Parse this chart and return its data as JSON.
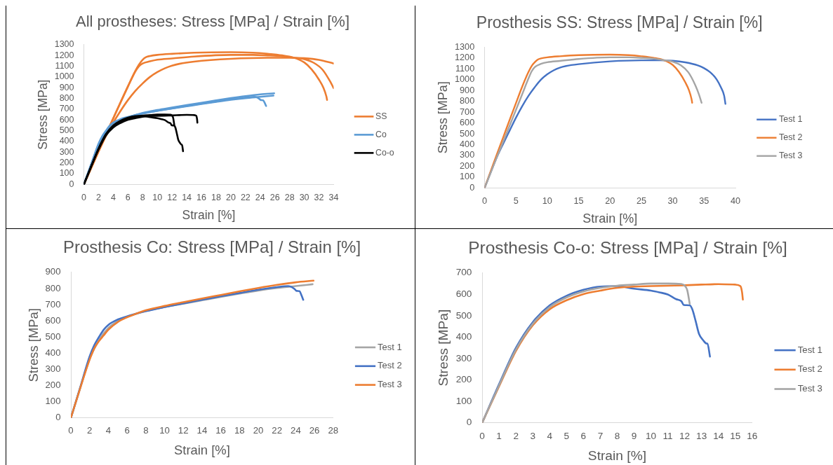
{
  "chart_data": [
    {
      "type": "line",
      "title": "All prostheses: Stress [MPa] / Strain [%]",
      "xlabel": "Strain [%]",
      "ylabel": "Stress [MPa]",
      "xlim": [
        0,
        34
      ],
      "xticks": [
        0,
        2,
        4,
        6,
        8,
        10,
        12,
        14,
        16,
        18,
        20,
        22,
        24,
        26,
        28,
        30,
        32,
        34
      ],
      "ylim": [
        0,
        1300
      ],
      "yticks": [
        0,
        100,
        200,
        300,
        400,
        500,
        600,
        700,
        800,
        900,
        1000,
        1100,
        1200,
        1300
      ],
      "legend": "right",
      "marker": "none",
      "series": [
        {
          "name": "SS",
          "color": "#ed7d31",
          "x": [
            0,
            1,
            2,
            3,
            4,
            5,
            6,
            7,
            8,
            9,
            10,
            11,
            12,
            13,
            15,
            20,
            25,
            28,
            30,
            32,
            34
          ],
          "values": [
            0,
            155,
            305,
            450,
            575,
            685,
            785,
            870,
            940,
            1000,
            1045,
            1080,
            1105,
            1122,
            1142,
            1168,
            1178,
            1178,
            1174,
            1159,
            1125
          ]
        },
        {
          "color": "#ed7d31",
          "x": [
            0,
            1,
            2,
            3,
            4,
            5,
            6,
            7,
            7.5,
            8,
            8.5,
            9,
            10,
            12,
            15,
            20,
            23,
            25,
            27,
            28.5,
            30,
            31,
            32,
            32.6,
            33,
            33.1
          ],
          "values": [
            0,
            155,
            310,
            465,
            615,
            765,
            912,
            1055,
            1115,
            1160,
            1185,
            1195,
            1205,
            1215,
            1225,
            1230,
            1225,
            1215,
            1200,
            1180,
            1135,
            1070,
            975,
            900,
            820,
            786
          ]
        },
        {
          "color": "#ed7d31",
          "x": [
            0,
            1,
            2,
            3,
            4,
            5,
            6,
            7,
            7.5,
            8,
            9,
            10,
            12,
            15,
            20,
            23,
            25,
            27,
            28.5,
            30,
            31.3,
            32.5,
            33.6,
            34
          ],
          "values": [
            0,
            155,
            310,
            465,
            615,
            765,
            912,
            1050,
            1100,
            1125,
            1145,
            1160,
            1172,
            1190,
            1205,
            1205,
            1200,
            1192,
            1180,
            1165,
            1131,
            1066,
            948,
            895
          ]
        },
        {
          "name": "Co",
          "color": "#5b9bd5",
          "x": [
            0,
            1,
            2,
            3,
            4,
            5,
            6,
            8,
            10,
            12,
            14,
            16,
            18,
            20,
            22,
            24,
            25.8
          ],
          "values": [
            0,
            185,
            365,
            480,
            555,
            598,
            624,
            660,
            685,
            706,
            727,
            748,
            768,
            787,
            803,
            815,
            826
          ]
        },
        {
          "color": "#5b9bd5",
          "x": [
            0,
            1,
            2,
            2.5,
            3,
            3.5,
            4,
            5,
            6,
            7,
            8,
            10,
            12,
            14,
            16,
            18,
            20,
            22,
            23.2,
            23.6,
            23.9,
            24.1,
            24.4,
            24.6,
            24.8
          ],
          "values": [
            0,
            190,
            380,
            450,
            500,
            545,
            575,
            608,
            628,
            645,
            660,
            685,
            708,
            730,
            752,
            772,
            792,
            808,
            815,
            808,
            795,
            785,
            783,
            760,
            730
          ]
        },
        {
          "color": "#5b9bd5",
          "x": [
            0,
            1,
            2,
            2.5,
            3,
            3.5,
            4,
            5,
            6,
            7,
            8,
            10,
            12,
            14,
            16,
            18,
            20,
            22,
            24,
            25.9
          ],
          "values": [
            0,
            185,
            360,
            430,
            475,
            510,
            545,
            592,
            622,
            645,
            665,
            692,
            715,
            738,
            760,
            782,
            803,
            822,
            838,
            848
          ]
        },
        {
          "name": "Co-o",
          "color": "#000000",
          "x": [
            0,
            1,
            2,
            3,
            4,
            5,
            6,
            7,
            8,
            9,
            10,
            10.5,
            11,
            11.5,
            11.8,
            11.95,
            12.3,
            12.45,
            12.65,
            12.85,
            13.1,
            13.3,
            13.35,
            13.5
          ],
          "values": [
            0,
            170,
            335,
            468,
            548,
            593,
            621,
            636,
            638,
            626,
            617,
            609,
            599,
            577,
            568,
            550,
            548,
            530,
            475,
            415,
            385,
            370,
            370,
            309
          ]
        },
        {
          "color": "#000000",
          "x": [
            0,
            1,
            2,
            3,
            4,
            5,
            6,
            7,
            8,
            9,
            10,
            11,
            12,
            13,
            14,
            15,
            15.3,
            15.4,
            15.45
          ],
          "values": [
            0,
            165,
            325,
            455,
            530,
            572,
            601,
            617,
            630,
            636,
            638,
            640,
            642,
            645,
            647,
            645,
            638,
            610,
            575
          ]
        },
        {
          "color": "#000000",
          "x": [
            0,
            1,
            2,
            3,
            4,
            5,
            6,
            7,
            8,
            9,
            10,
            11,
            11.8,
            12,
            12.15,
            12.3
          ],
          "values": [
            0,
            168,
            330,
            462,
            540,
            585,
            613,
            630,
            640,
            645,
            650,
            650,
            648,
            640,
            620,
            556
          ]
        }
      ]
    },
    {
      "type": "line",
      "title": "Prosthesis SS: Stress [MPa] / Strain [%]",
      "xlabel": "Strain [%]",
      "ylabel": "Stress [MPa]",
      "xlim": [
        0,
        40
      ],
      "xticks": [
        0,
        5,
        10,
        15,
        20,
        25,
        30,
        35,
        40
      ],
      "ylim": [
        0,
        1300
      ],
      "yticks": [
        0,
        100,
        200,
        300,
        400,
        500,
        600,
        700,
        800,
        900,
        1000,
        1100,
        1200,
        1300
      ],
      "legend": "right",
      "marker": "none",
      "series": [
        {
          "name": "Test 1",
          "color": "#4472c4",
          "x": [
            0,
            1,
            2,
            3,
            4,
            5,
            6,
            7,
            8,
            9,
            10,
            11,
            12,
            13,
            15,
            20,
            25,
            28,
            30,
            32,
            34,
            35,
            36,
            37,
            37.7,
            38.2,
            38.4
          ],
          "values": [
            0,
            148,
            290,
            412,
            530,
            648,
            755,
            850,
            930,
            1000,
            1049,
            1085,
            1110,
            1125,
            1142,
            1168,
            1178,
            1178,
            1174,
            1159,
            1131,
            1105,
            1066,
            1002,
            926,
            851,
            776
          ]
        },
        {
          "name": "Test 2",
          "color": "#ed7d31",
          "x": [
            0,
            1,
            2,
            3,
            4,
            5,
            6,
            7,
            7.5,
            8,
            8.5,
            9,
            10,
            12,
            15,
            20,
            23,
            25,
            27,
            28.5,
            30,
            31,
            32,
            32.6,
            33,
            33.1
          ],
          "values": [
            0,
            158,
            316,
            472,
            628,
            782,
            935,
            1070,
            1125,
            1160,
            1185,
            1195,
            1205,
            1215,
            1225,
            1230,
            1225,
            1215,
            1200,
            1180,
            1135,
            1070,
            975,
            900,
            820,
            786
          ]
        },
        {
          "name": "Test 3",
          "color": "#a5a5a5",
          "x": [
            0,
            1,
            2,
            3,
            4,
            5,
            6,
            7,
            7.5,
            8,
            9,
            10,
            12,
            15,
            20,
            23,
            25,
            27,
            28.5,
            30,
            31.3,
            32.5,
            33.6,
            34.2,
            34.6
          ],
          "values": [
            0,
            145,
            290,
            432,
            575,
            720,
            865,
            1010,
            1075,
            1115,
            1145,
            1160,
            1172,
            1190,
            1205,
            1205,
            1200,
            1192,
            1180,
            1165,
            1131,
            1066,
            948,
            860,
            786
          ]
        }
      ]
    },
    {
      "type": "line",
      "title": "Prosthesis Co: Stress [MPa] / Strain [%]",
      "xlabel": "Strain [%]",
      "ylabel": "Stress [MPa]",
      "xlim": [
        0,
        28
      ],
      "xticks": [
        0,
        2,
        4,
        6,
        8,
        10,
        12,
        14,
        16,
        18,
        20,
        22,
        24,
        26,
        28
      ],
      "ylim": [
        0,
        900
      ],
      "yticks": [
        0,
        100,
        200,
        300,
        400,
        500,
        600,
        700,
        800,
        900
      ],
      "legend": "right",
      "marker": "none",
      "series": [
        {
          "name": "Test 1",
          "color": "#a5a5a5",
          "x": [
            0,
            1,
            2,
            3,
            4,
            5,
            6,
            8,
            10,
            12,
            14,
            16,
            18,
            20,
            22,
            24,
            25.8
          ],
          "values": [
            0,
            185,
            365,
            480,
            555,
            598,
            624,
            660,
            685,
            706,
            727,
            748,
            768,
            787,
            803,
            815,
            826
          ]
        },
        {
          "name": "Test 2",
          "color": "#4472c4",
          "x": [
            0,
            1,
            2,
            2.5,
            3,
            3.5,
            4,
            5,
            6,
            7,
            8,
            10,
            12,
            14,
            16,
            18,
            20,
            22,
            23.2,
            23.6,
            23.9,
            24.1,
            24.4,
            24.6,
            24.8
          ],
          "values": [
            0,
            190,
            380,
            450,
            500,
            545,
            575,
            608,
            628,
            645,
            660,
            685,
            708,
            730,
            752,
            772,
            792,
            808,
            815,
            808,
            795,
            785,
            783,
            760,
            730
          ]
        },
        {
          "name": "Test 3",
          "color": "#ed7d31",
          "x": [
            0,
            1,
            2,
            2.5,
            3,
            3.5,
            4,
            5,
            6,
            7,
            8,
            10,
            12,
            14,
            16,
            18,
            20,
            22,
            24,
            25.9
          ],
          "values": [
            0,
            185,
            360,
            430,
            475,
            510,
            545,
            592,
            622,
            645,
            665,
            692,
            715,
            738,
            760,
            782,
            803,
            822,
            838,
            848
          ]
        }
      ]
    },
    {
      "type": "line",
      "title": "Prosthesis Co-o: Stress [MPa] / Strain [%]",
      "xlabel": "Strain [%]",
      "ylabel": "Stress [MPa]",
      "xlim": [
        0,
        16
      ],
      "xticks": [
        0,
        1,
        2,
        3,
        4,
        5,
        6,
        7,
        8,
        9,
        10,
        11,
        12,
        13,
        14,
        15,
        16
      ],
      "ylim": [
        0,
        700
      ],
      "yticks": [
        0,
        100,
        200,
        300,
        400,
        500,
        600,
        700
      ],
      "legend": "right",
      "marker": "none",
      "series": [
        {
          "name": "Test 1",
          "color": "#4472c4",
          "x": [
            0,
            1,
            2,
            3,
            4,
            5,
            6,
            7,
            8,
            9,
            10,
            10.5,
            11,
            11.5,
            11.8,
            11.95,
            12.3,
            12.45,
            12.65,
            12.85,
            13.1,
            13.3,
            13.35,
            13.5
          ],
          "values": [
            0,
            180,
            350,
            470,
            548,
            593,
            621,
            636,
            638,
            626,
            617,
            609,
            599,
            577,
            568,
            550,
            548,
            530,
            475,
            415,
            385,
            370,
            370,
            309
          ]
        },
        {
          "name": "Test 2",
          "color": "#ed7d31",
          "x": [
            0,
            1,
            2,
            3,
            4,
            5,
            6,
            7,
            8,
            9,
            10,
            11,
            12,
            13,
            14,
            15,
            15.3,
            15.4,
            15.45
          ],
          "values": [
            0,
            170,
            335,
            455,
            530,
            572,
            601,
            617,
            630,
            636,
            638,
            640,
            642,
            645,
            647,
            645,
            638,
            610,
            575
          ]
        },
        {
          "name": "Test 3",
          "color": "#a5a5a5",
          "x": [
            0,
            1,
            2,
            3,
            4,
            5,
            6,
            7,
            8,
            9,
            10,
            11,
            11.8,
            12,
            12.15,
            12.3
          ],
          "values": [
            0,
            175,
            342,
            462,
            540,
            585,
            613,
            630,
            640,
            645,
            650,
            650,
            648,
            640,
            620,
            556
          ]
        }
      ]
    }
  ]
}
